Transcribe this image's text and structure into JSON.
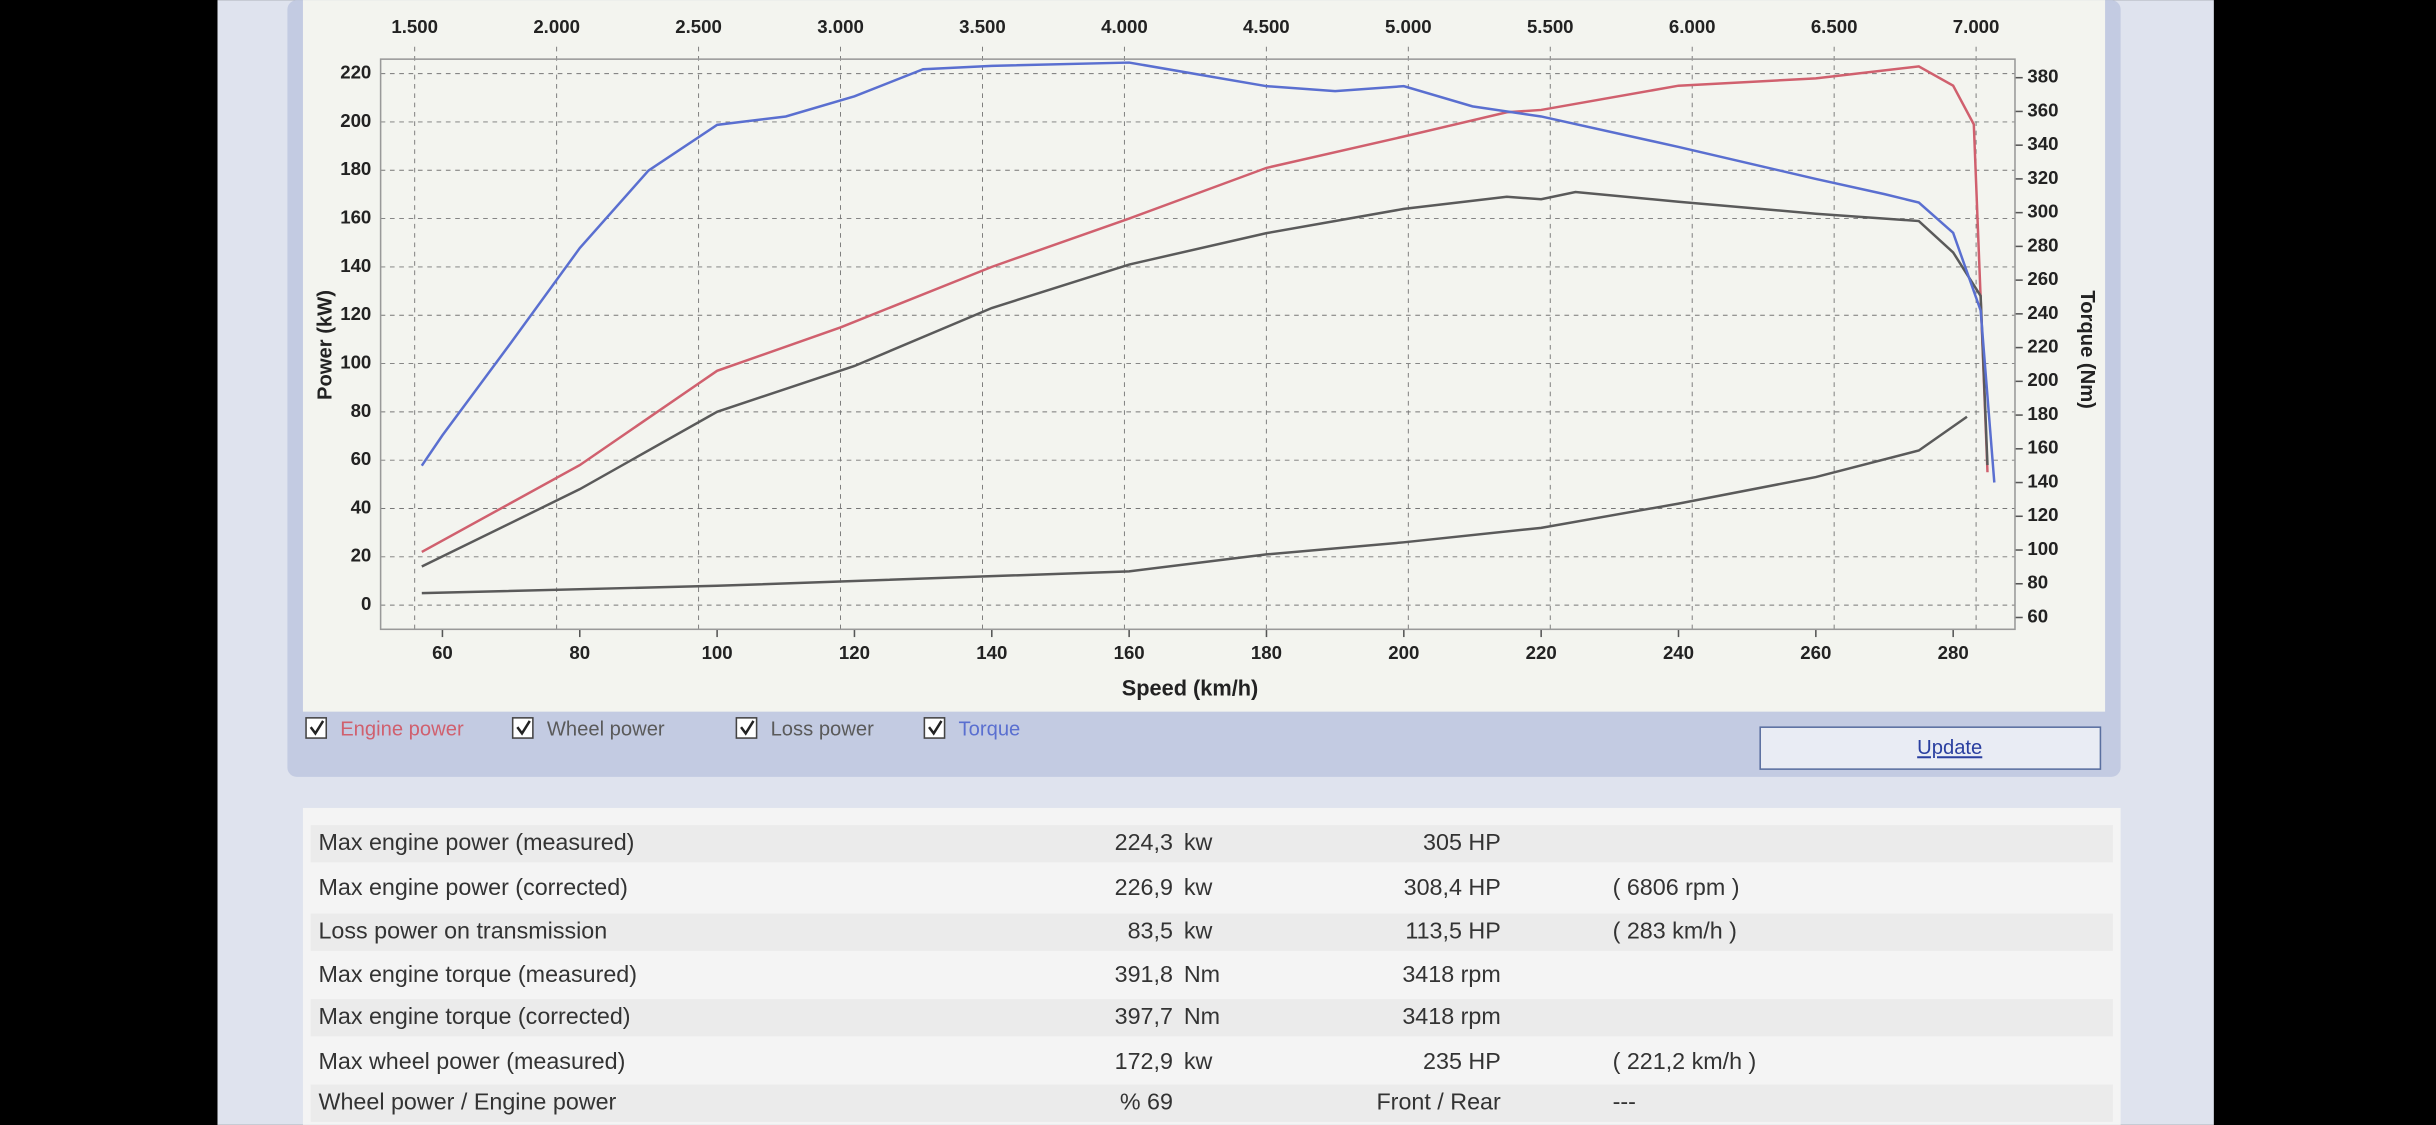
{
  "chart_data": {
    "type": "line",
    "xlabel": "Speed (km/h)",
    "ylabel": "Power (kW)",
    "y2label": "Torque (Nm)",
    "xlim": [
      51,
      289
    ],
    "xticks": [
      60,
      80,
      100,
      120,
      140,
      160,
      180,
      200,
      220,
      240,
      260,
      280
    ],
    "x2lim": [
      1380,
      7137
    ],
    "x2ticks": [
      {
        "value": 1500,
        "label": "1.500"
      },
      {
        "value": 2000,
        "label": "2.000"
      },
      {
        "value": 2500,
        "label": "2.500"
      },
      {
        "value": 3000,
        "label": "3.000"
      },
      {
        "value": 3500,
        "label": "3.500"
      },
      {
        "value": 4000,
        "label": "4.000"
      },
      {
        "value": 4500,
        "label": "4.500"
      },
      {
        "value": 5000,
        "label": "5.000"
      },
      {
        "value": 5500,
        "label": "5.500"
      },
      {
        "value": 6000,
        "label": "6.000"
      },
      {
        "value": 6500,
        "label": "6.500"
      },
      {
        "value": 7000,
        "label": "7.000"
      }
    ],
    "ylim": [
      -10,
      226
    ],
    "yticks": [
      0,
      20,
      40,
      60,
      80,
      100,
      120,
      140,
      160,
      180,
      200,
      220
    ],
    "y2lim": [
      53,
      391
    ],
    "y2ticks": [
      60,
      80,
      100,
      120,
      140,
      160,
      180,
      200,
      220,
      240,
      260,
      280,
      300,
      320,
      340,
      360,
      380
    ],
    "grid": true,
    "series": [
      {
        "name": "Engine power",
        "color": "#d0606e",
        "x": [
          57,
          80,
          100,
          118,
          140,
          160,
          180,
          200,
          215,
          220,
          240,
          260,
          275,
          280,
          283,
          285
        ],
        "values": [
          22,
          58,
          97,
          115,
          140,
          160,
          181,
          194,
          204,
          205,
          215,
          218,
          223,
          215,
          199,
          55
        ]
      },
      {
        "name": "Wheel power",
        "color": "#5a5a5a",
        "x": [
          57,
          80,
          100,
          120,
          140,
          160,
          180,
          200,
          215,
          220,
          225,
          240,
          260,
          275,
          280,
          284,
          285
        ],
        "values": [
          16,
          48,
          80,
          99,
          123,
          141,
          154,
          164,
          169,
          168,
          171,
          167,
          162,
          159,
          146,
          128,
          58
        ]
      },
      {
        "name": "Loss power",
        "color": "#5a5a5a",
        "x": [
          57,
          100,
          140,
          160,
          180,
          200,
          220,
          240,
          260,
          275,
          282
        ],
        "values": [
          5,
          8,
          12,
          14,
          21,
          26,
          32,
          42,
          53,
          64,
          78
        ]
      },
      {
        "name": "Torque",
        "color": "#5a6fd0",
        "axis": "y2",
        "x": [
          57,
          60,
          70,
          80,
          90,
          100,
          110,
          120,
          130,
          140,
          160,
          170,
          180,
          190,
          200,
          210,
          220,
          240,
          260,
          270,
          275,
          280,
          284,
          286
        ],
        "values": [
          150,
          168,
          223,
          279,
          325,
          352,
          357,
          369,
          385,
          387,
          389,
          382,
          375,
          372,
          375,
          363,
          357,
          339,
          320,
          311,
          306,
          288,
          242,
          140
        ]
      }
    ]
  },
  "update_button": "Update",
  "table": {
    "rows": [
      [
        "Max engine power (measured)",
        "224,3",
        "kw",
        "305 HP",
        ""
      ],
      [
        "Max engine power (corrected)",
        "226,9",
        "kw",
        "308,4 HP",
        "( 6806 rpm )"
      ],
      [
        "Loss power on transmission",
        "83,5",
        "kw",
        "113,5 HP",
        "( 283 km/h )"
      ],
      [
        "Max engine torque (measured)",
        "391,8",
        "Nm",
        "3418 rpm",
        ""
      ],
      [
        "Max engine torque (corrected)",
        "397,7",
        "Nm",
        "3418 rpm",
        ""
      ],
      [
        "Max wheel power (measured)",
        "172,9",
        "kw",
        "235 HP",
        "( 221,2 km/h )"
      ],
      [
        "Wheel power / Engine power",
        "% 69",
        "",
        "Front / Rear",
        "---"
      ]
    ]
  }
}
